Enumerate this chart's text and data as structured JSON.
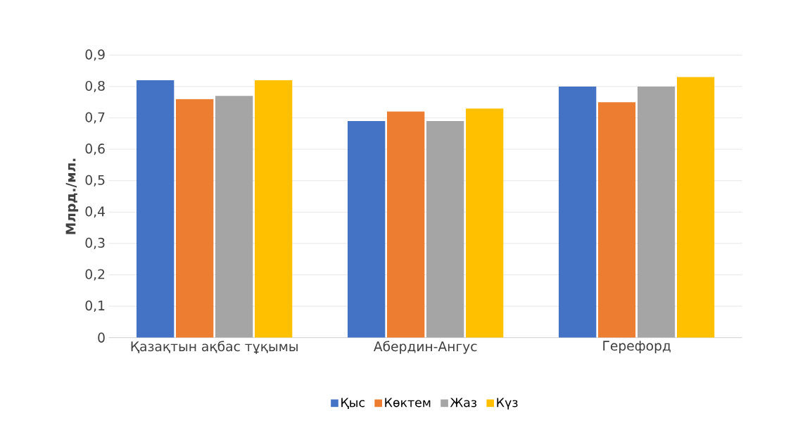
{
  "chart_data": {
    "type": "bar",
    "ylabel": "Млрд./мл.",
    "categories": [
      "Қазақтын ақбас тұқымы",
      "Абердин-Ангус",
      "Герефорд"
    ],
    "series": [
      {
        "name": "Қыс",
        "color": "#4472c4",
        "values": [
          0.82,
          0.69,
          0.8
        ]
      },
      {
        "name": "Көктем",
        "color": "#ed7d31",
        "values": [
          0.76,
          0.72,
          0.75
        ]
      },
      {
        "name": "Жаз",
        "color": "#a5a5a5",
        "values": [
          0.77,
          0.69,
          0.8
        ]
      },
      {
        "name": "Күз",
        "color": "#ffc000",
        "values": [
          0.82,
          0.73,
          0.83
        ]
      }
    ],
    "ylim": [
      0,
      0.9
    ],
    "yticks": [
      {
        "value": 0,
        "label": "0"
      },
      {
        "value": 0.1,
        "label": "0,1"
      },
      {
        "value": 0.2,
        "label": "0,2"
      },
      {
        "value": 0.3,
        "label": "0,3"
      },
      {
        "value": 0.4,
        "label": "0,4"
      },
      {
        "value": 0.5,
        "label": "0,5"
      },
      {
        "value": 0.6,
        "label": "0,6"
      },
      {
        "value": 0.7,
        "label": "0,7"
      },
      {
        "value": 0.8,
        "label": "0,8"
      },
      {
        "value": 0.9,
        "label": "0,9"
      }
    ],
    "grid": "y",
    "legend": "bottom"
  }
}
